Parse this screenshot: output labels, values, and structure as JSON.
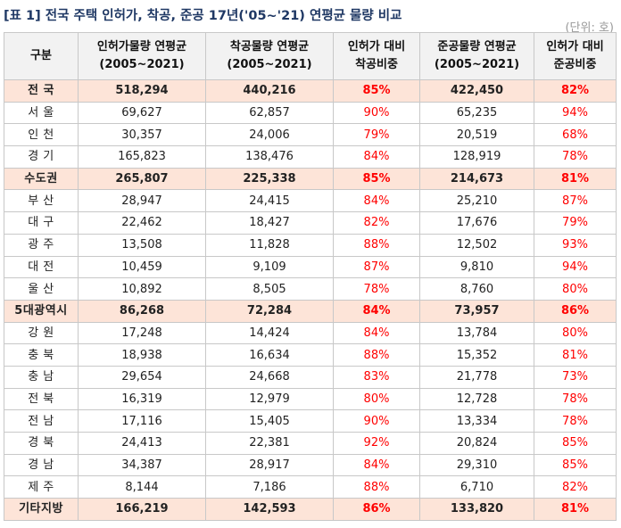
{
  "title": "[표 1] 전국 주택 인허가, 착공, 준공 17년('05~'21) 연평균 물량 비교",
  "unit": "(단위: 호)",
  "headers": [
    {
      "line1": "구분",
      "line2": ""
    },
    {
      "line1": "인허가물량 연평균",
      "line2": "(2005~2021)"
    },
    {
      "line1": "착공물량 연평균",
      "line2": "(2005~2021)"
    },
    {
      "line1": "인허가 대비",
      "line2": "착공비중"
    },
    {
      "line1": "준공물량 연평균",
      "line2": "(2005~2021)"
    },
    {
      "line1": "인허가 대비",
      "line2": "준공비중"
    }
  ],
  "rows": [
    {
      "name": "전 국",
      "permits": "518,294",
      "starts": "440,216",
      "start_ratio": "85%",
      "completions": "422,450",
      "completion_ratio": "82%",
      "total": true
    },
    {
      "name": "서 울",
      "permits": "69,627",
      "starts": "62,857",
      "start_ratio": "90%",
      "completions": "65,235",
      "completion_ratio": "94%",
      "total": false
    },
    {
      "name": "인 천",
      "permits": "30,357",
      "starts": "24,006",
      "start_ratio": "79%",
      "completions": "20,519",
      "completion_ratio": "68%",
      "total": false
    },
    {
      "name": "경 기",
      "permits": "165,823",
      "starts": "138,476",
      "start_ratio": "84%",
      "completions": "128,919",
      "completion_ratio": "78%",
      "total": false
    },
    {
      "name": "수도권",
      "permits": "265,807",
      "starts": "225,338",
      "start_ratio": "85%",
      "completions": "214,673",
      "completion_ratio": "81%",
      "total": true
    },
    {
      "name": "부 산",
      "permits": "28,947",
      "starts": "24,415",
      "start_ratio": "84%",
      "completions": "25,210",
      "completion_ratio": "87%",
      "total": false
    },
    {
      "name": "대 구",
      "permits": "22,462",
      "starts": "18,427",
      "start_ratio": "82%",
      "completions": "17,676",
      "completion_ratio": "79%",
      "total": false
    },
    {
      "name": "광 주",
      "permits": "13,508",
      "starts": "11,828",
      "start_ratio": "88%",
      "completions": "12,502",
      "completion_ratio": "93%",
      "total": false
    },
    {
      "name": "대 전",
      "permits": "10,459",
      "starts": "9,109",
      "start_ratio": "87%",
      "completions": "9,810",
      "completion_ratio": "94%",
      "total": false
    },
    {
      "name": "울 산",
      "permits": "10,892",
      "starts": "8,505",
      "start_ratio": "78%",
      "completions": "8,760",
      "completion_ratio": "80%",
      "total": false
    },
    {
      "name": "5대광역시",
      "permits": "86,268",
      "starts": "72,284",
      "start_ratio": "84%",
      "completions": "73,957",
      "completion_ratio": "86%",
      "total": true
    },
    {
      "name": "강 원",
      "permits": "17,248",
      "starts": "14,424",
      "start_ratio": "84%",
      "completions": "13,784",
      "completion_ratio": "80%",
      "total": false
    },
    {
      "name": "충 북",
      "permits": "18,938",
      "starts": "16,634",
      "start_ratio": "88%",
      "completions": "15,352",
      "completion_ratio": "81%",
      "total": false
    },
    {
      "name": "충 남",
      "permits": "29,654",
      "starts": "24,668",
      "start_ratio": "83%",
      "completions": "21,778",
      "completion_ratio": "73%",
      "total": false
    },
    {
      "name": "전 북",
      "permits": "16,319",
      "starts": "12,979",
      "start_ratio": "80%",
      "completions": "12,728",
      "completion_ratio": "78%",
      "total": false
    },
    {
      "name": "전 남",
      "permits": "17,116",
      "starts": "15,405",
      "start_ratio": "90%",
      "completions": "13,334",
      "completion_ratio": "78%",
      "total": false
    },
    {
      "name": "경 북",
      "permits": "24,413",
      "starts": "22,381",
      "start_ratio": "92%",
      "completions": "20,824",
      "completion_ratio": "85%",
      "total": false
    },
    {
      "name": "경 남",
      "permits": "34,387",
      "starts": "28,917",
      "start_ratio": "84%",
      "completions": "29,310",
      "completion_ratio": "85%",
      "total": false
    },
    {
      "name": "제 주",
      "permits": "8,144",
      "starts": "7,186",
      "start_ratio": "88%",
      "completions": "6,710",
      "completion_ratio": "82%",
      "total": false
    },
    {
      "name": "기타지방",
      "permits": "166,219",
      "starts": "142,593",
      "start_ratio": "86%",
      "completions": "133,820",
      "completion_ratio": "81%",
      "total": true
    }
  ]
}
